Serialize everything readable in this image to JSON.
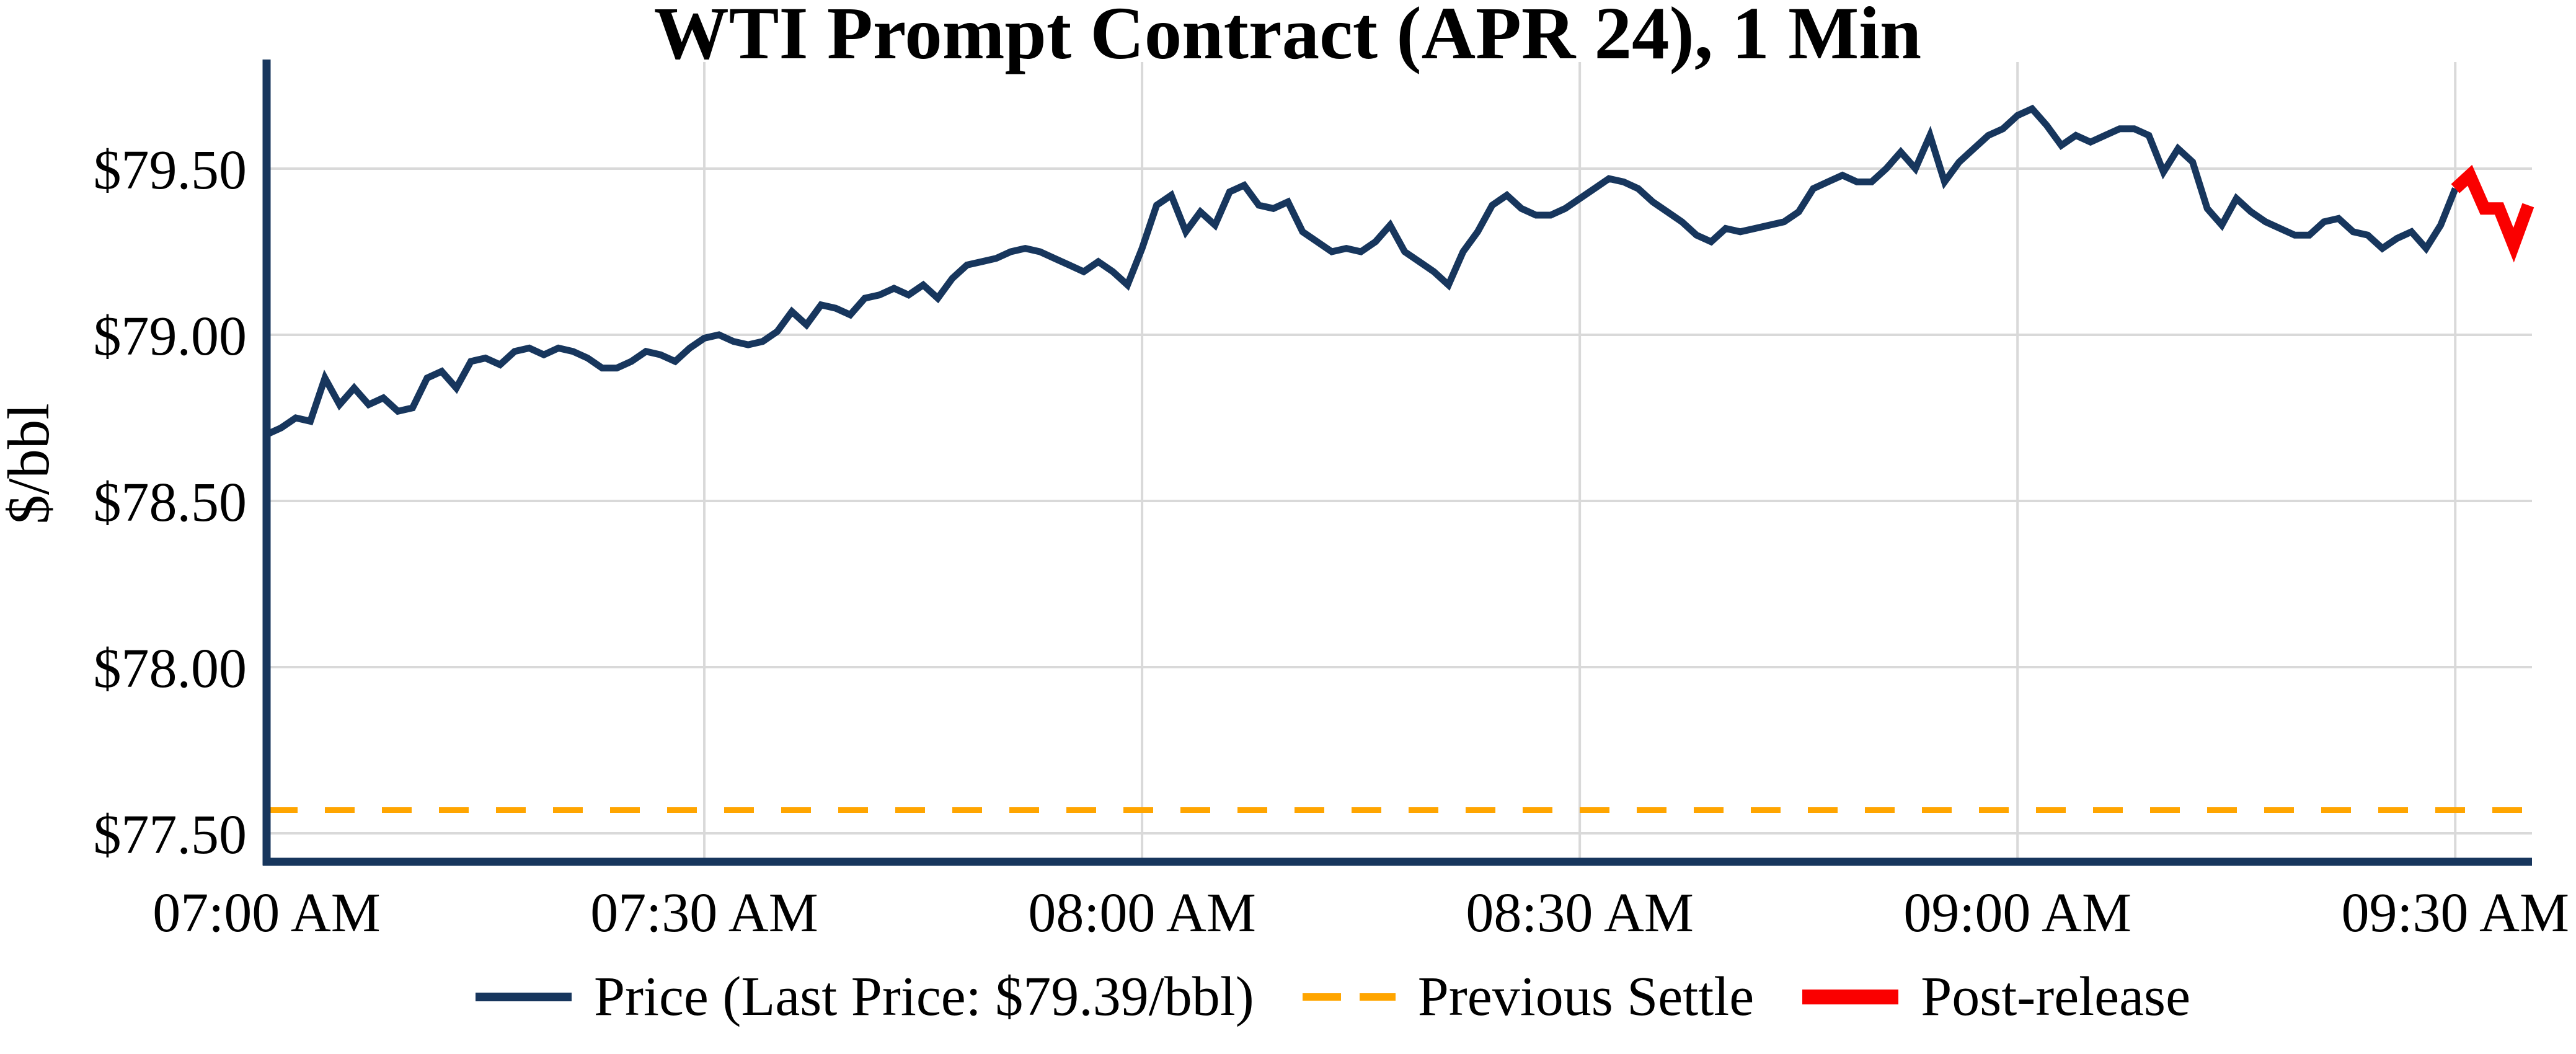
{
  "title": "WTI Prompt Contract (APR 24), 1 Min",
  "colors": {
    "price": "#17365d",
    "settle": "#ffa500",
    "post": "#fa0000",
    "grid": "#d9d9d9",
    "axis": "#17365d",
    "text": "#000000",
    "background": "#ffffff"
  },
  "y_axis": {
    "label": "$/bbl",
    "ticks": [
      {
        "label": "$79.50",
        "value": 79.5
      },
      {
        "label": "$79.00",
        "value": 79.0
      },
      {
        "label": "$78.50",
        "value": 78.5
      },
      {
        "label": "$78.00",
        "value": 78.0
      },
      {
        "label": "$77.50",
        "value": 77.5
      }
    ]
  },
  "x_axis": {
    "ticks": [
      {
        "label": "07:00 AM",
        "minute": 0
      },
      {
        "label": "07:30 AM",
        "minute": 30
      },
      {
        "label": "08:00 AM",
        "minute": 60
      },
      {
        "label": "08:30 AM",
        "minute": 90
      },
      {
        "label": "09:00 AM",
        "minute": 120
      },
      {
        "label": "09:30 AM",
        "minute": 150
      }
    ]
  },
  "legend": {
    "items": [
      {
        "label": "Price (Last Price: $79.39/bbl)",
        "swatch": "solid-line"
      },
      {
        "label": "Previous Settle",
        "swatch": "dashed-line"
      },
      {
        "label": "Post-release",
        "swatch": "thick-line"
      }
    ]
  },
  "chart_data": {
    "type": "line",
    "title": "WTI Prompt Contract (APR 24), 1 Min",
    "ylabel": "$/bbl",
    "x_unit": "minutes after 07:00 AM, 1-minute interval",
    "xlim_minutes": [
      0,
      155
    ],
    "ylim": [
      77.42,
      79.82
    ],
    "grid": true,
    "legend_position": "bottom-center",
    "last_price": 79.39,
    "previous_settle": {
      "name": "Previous Settle",
      "value": 77.57,
      "style": "dashed"
    },
    "series": [
      {
        "name": "Price",
        "start_minute": 0,
        "values": [
          78.7,
          78.72,
          78.75,
          78.74,
          78.87,
          78.79,
          78.84,
          78.79,
          78.81,
          78.77,
          78.78,
          78.87,
          78.89,
          78.84,
          78.92,
          78.93,
          78.91,
          78.95,
          78.96,
          78.94,
          78.96,
          78.95,
          78.93,
          78.9,
          78.9,
          78.92,
          78.95,
          78.94,
          78.92,
          78.96,
          78.99,
          79.0,
          78.98,
          78.97,
          78.98,
          79.01,
          79.07,
          79.03,
          79.09,
          79.08,
          79.06,
          79.11,
          79.12,
          79.14,
          79.12,
          79.15,
          79.11,
          79.17,
          79.21,
          79.22,
          79.23,
          79.25,
          79.26,
          79.25,
          79.23,
          79.21,
          79.19,
          79.22,
          79.19,
          79.15,
          79.26,
          79.39,
          79.42,
          79.31,
          79.37,
          79.33,
          79.43,
          79.45,
          79.39,
          79.38,
          79.4,
          79.31,
          79.28,
          79.25,
          79.26,
          79.25,
          79.28,
          79.33,
          79.25,
          79.22,
          79.19,
          79.15,
          79.25,
          79.31,
          79.39,
          79.42,
          79.38,
          79.36,
          79.36,
          79.38,
          79.41,
          79.44,
          79.47,
          79.46,
          79.44,
          79.4,
          79.37,
          79.34,
          79.3,
          79.28,
          79.32,
          79.31,
          79.32,
          79.33,
          79.34,
          79.37,
          79.44,
          79.46,
          79.48,
          79.46,
          79.46,
          79.5,
          79.55,
          79.5,
          79.6,
          79.46,
          79.52,
          79.56,
          79.6,
          79.62,
          79.66,
          79.68,
          79.63,
          79.57,
          79.6,
          79.58,
          79.6,
          79.62,
          79.62,
          79.6,
          79.49,
          79.56,
          79.52,
          79.38,
          79.33,
          79.41,
          79.37,
          79.34,
          79.32,
          79.3,
          79.3,
          79.34,
          79.35,
          79.31,
          79.3,
          79.26,
          79.29,
          79.31,
          79.26,
          79.33,
          79.44
        ]
      },
      {
        "name": "Post-release",
        "start_minute": 150,
        "values": [
          79.44,
          79.48,
          79.38,
          79.38,
          79.27,
          79.39
        ]
      }
    ]
  }
}
